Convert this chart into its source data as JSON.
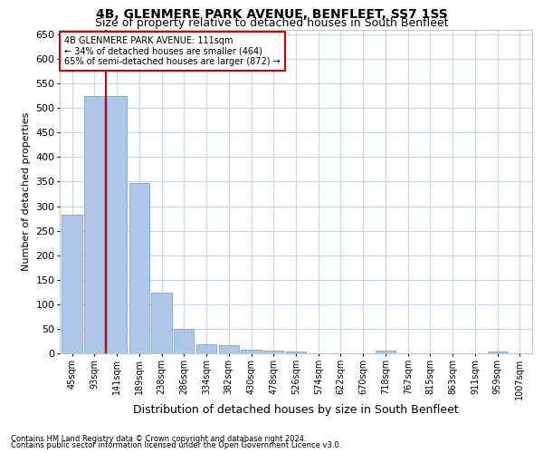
{
  "title": "4B, GLENMERE PARK AVENUE, BENFLEET, SS7 1SS",
  "subtitle": "Size of property relative to detached houses in South Benfleet",
  "xlabel": "Distribution of detached houses by size in South Benfleet",
  "ylabel": "Number of detached properties",
  "footnote1": "Contains HM Land Registry data © Crown copyright and database right 2024.",
  "footnote2": "Contains public sector information licensed under the Open Government Licence v3.0.",
  "annotation_line1": "4B GLENMERE PARK AVENUE: 111sqm",
  "annotation_line2": "← 34% of detached houses are smaller (464)",
  "annotation_line3": "65% of semi-detached houses are larger (872) →",
  "bar_labels": [
    "45sqm",
    "93sqm",
    "141sqm",
    "189sqm",
    "238sqm",
    "286sqm",
    "334sqm",
    "382sqm",
    "430sqm",
    "478sqm",
    "526sqm",
    "574sqm",
    "622sqm",
    "670sqm",
    "718sqm",
    "767sqm",
    "815sqm",
    "863sqm",
    "911sqm",
    "959sqm",
    "1007sqm"
  ],
  "bar_values": [
    283,
    524,
    524,
    348,
    123,
    50,
    18,
    16,
    8,
    6,
    4,
    0,
    0,
    0,
    5,
    0,
    0,
    0,
    0,
    4,
    0
  ],
  "bar_color": "#aec6e8",
  "bar_edge_color": "#6fa8d4",
  "vline_color": "#cc0000",
  "vline_position": 1.5,
  "ylim": [
    0,
    660
  ],
  "yticks": [
    0,
    50,
    100,
    150,
    200,
    250,
    300,
    350,
    400,
    450,
    500,
    550,
    600,
    650
  ],
  "bg_color": "#ffffff",
  "grid_color": "#c8d4e8",
  "annotation_box_edge_color": "#cc0000",
  "title_fontsize": 10,
  "subtitle_fontsize": 9,
  "axis_fontsize": 8,
  "tick_fontsize": 7,
  "footnote_fontsize": 6
}
